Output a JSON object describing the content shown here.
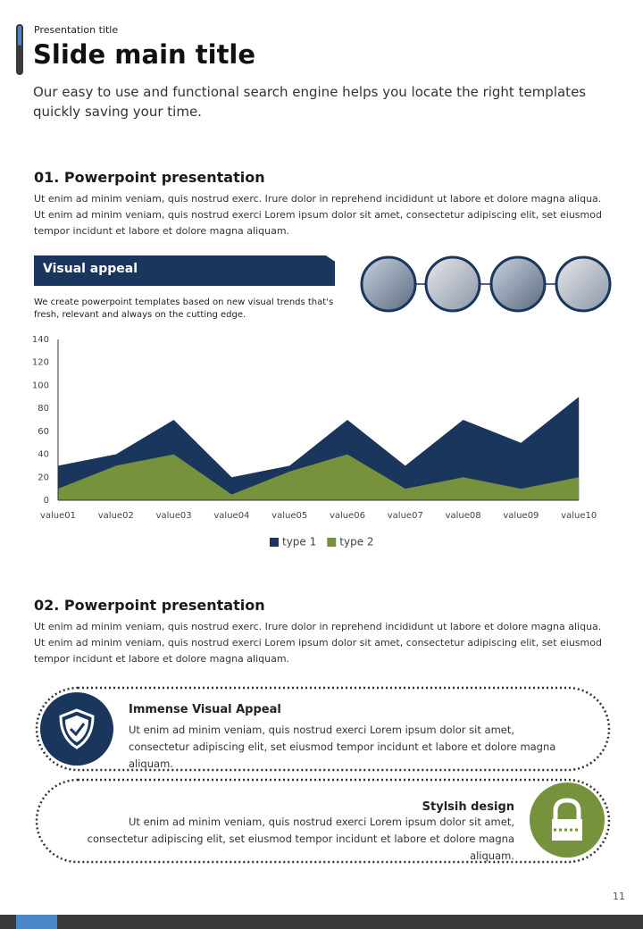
{
  "header": {
    "label": "Presentation title",
    "title": "Slide main title",
    "subtitle": "Our easy to use and functional search engine helps you locate the right templates quickly saving your time."
  },
  "section1": {
    "heading": "01. Powerpoint presentation",
    "body": "Ut enim ad minim veniam, quis nostrud exerc. Irure dolor in reprehend incididunt ut labore et dolore magna aliqua. Ut enim ad minim veniam, quis nostrud exerci  Lorem ipsum dolor sit amet, consectetur adipiscing elit, set eiusmod tempor incidunt et labore et dolore magna aliquam."
  },
  "visual": {
    "title": "Visual appeal",
    "text": "We create powerpoint templates based on new visual trends that's fresh, relevant and always on the cutting edge."
  },
  "chart": {
    "type": "area",
    "categories": [
      "value01",
      "value02",
      "value03",
      "value04",
      "value05",
      "value06",
      "value07",
      "value08",
      "value09",
      "value10"
    ],
    "series": [
      {
        "name": "type 1",
        "color": "#1b365d",
        "values": [
          30,
          40,
          70,
          20,
          30,
          70,
          30,
          70,
          50,
          90
        ]
      },
      {
        "name": "type 2",
        "color": "#76923c",
        "values": [
          10,
          30,
          40,
          5,
          25,
          40,
          10,
          20,
          10,
          20
        ]
      }
    ],
    "ylim": [
      0,
      140
    ],
    "yticks": [
      0,
      20,
      40,
      60,
      80,
      100,
      120,
      140
    ]
  },
  "section2": {
    "heading": "02. Powerpoint presentation",
    "body": "Ut enim ad minim veniam, quis nostrud exerc. Irure dolor in reprehend incididunt ut labore et dolore magna aliqua. Ut enim ad minim veniam, quis nostrud exerci  Lorem ipsum dolor sit amet, consectetur adipiscing elit, set eiusmod tempor incidunt et labore et dolore magna aliquam."
  },
  "cards": [
    {
      "title": "Immense Visual Appeal",
      "text": "Ut enim ad minim veniam, quis nostrud exerci  Lorem ipsum dolor sit amet, consectetur adipiscing elit, set eiusmod tempor incidunt et labore et dolore magna aliquam."
    },
    {
      "title": "Stylsih design",
      "text": "Ut enim ad minim veniam, quis nostrud exerci  Lorem ipsum dolor sit amet, consectetur adipiscing elit, set eiusmod tempor incidunt et labore et dolore magna aliquam."
    }
  ],
  "page_number": 11
}
